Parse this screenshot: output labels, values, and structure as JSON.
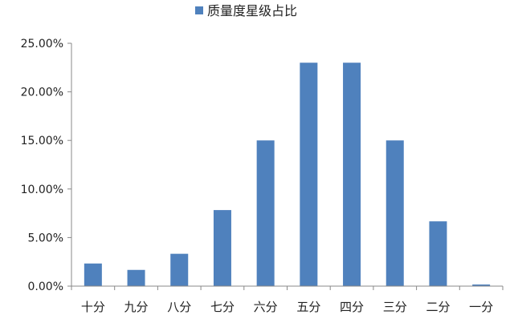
{
  "chart_data": {
    "type": "bar",
    "categories": [
      "十分",
      "九分",
      "八分",
      "七分",
      "六分",
      "五分",
      "四分",
      "三分",
      "二分",
      "一分"
    ],
    "series": [
      {
        "name": "质量度星级占比",
        "values": [
          2.33,
          1.67,
          3.33,
          7.83,
          15.0,
          23.0,
          23.0,
          15.0,
          6.67,
          0.17
        ]
      }
    ],
    "ylim": [
      0,
      25
    ],
    "yticks": [
      "0.00%",
      "5.00%",
      "10.00%",
      "15.00%",
      "20.00%",
      "25.00%"
    ],
    "legend_position": "top",
    "grid": false,
    "bar_color": "#4F81BD",
    "axis_color": "#888888"
  }
}
